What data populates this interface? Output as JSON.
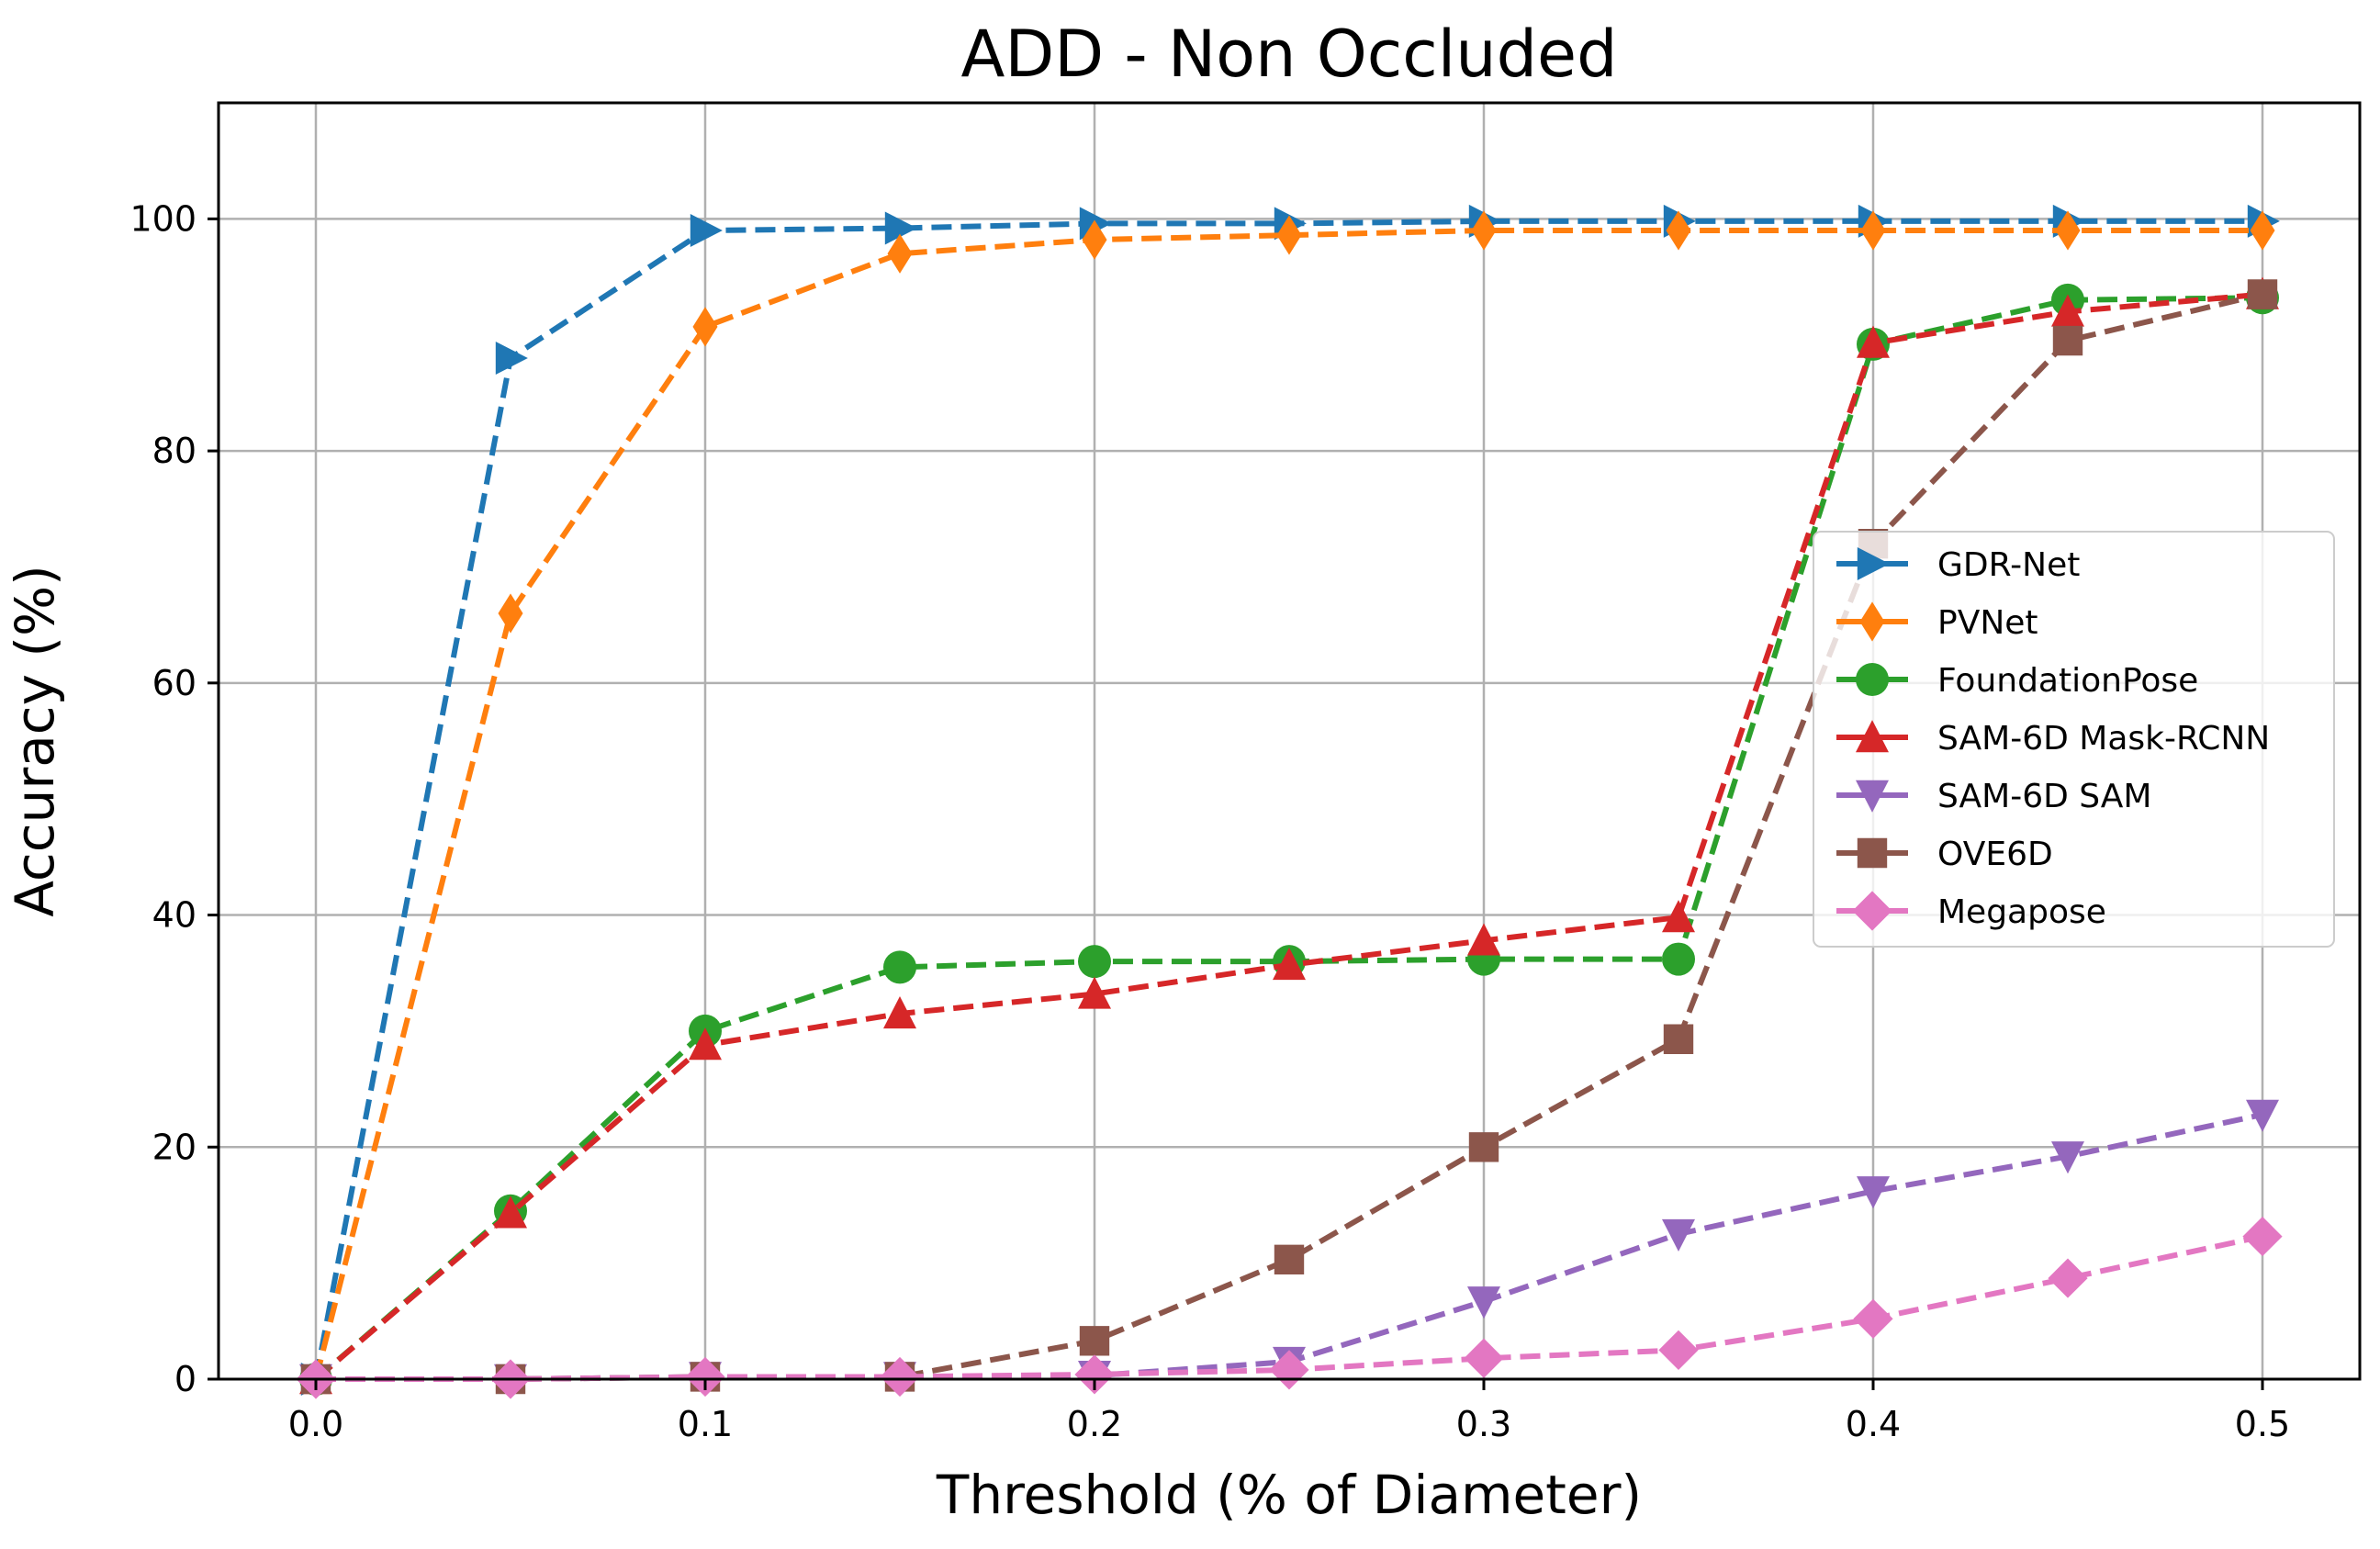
{
  "chart_data": {
    "type": "line",
    "title": "ADD - Non Occluded",
    "xlabel": "Threshold (% of Diameter)",
    "ylabel": "Accuracy (%)",
    "xlim": [
      -0.025,
      0.525
    ],
    "ylim": [
      0,
      110
    ],
    "xticks": [
      0.0,
      0.1,
      0.2,
      0.3,
      0.4,
      0.5
    ],
    "xtick_labels": [
      "0.0",
      "0.1",
      "0.2",
      "0.3",
      "0.4",
      "0.5"
    ],
    "yticks": [
      0,
      20,
      40,
      60,
      80,
      100
    ],
    "ytick_labels": [
      "0",
      "20",
      "40",
      "60",
      "80",
      "100"
    ],
    "grid": true,
    "legend_position": "center-right",
    "x": [
      0.0,
      0.05,
      0.1,
      0.15,
      0.2,
      0.25,
      0.3,
      0.35,
      0.4,
      0.45,
      0.5
    ],
    "series": [
      {
        "name": "GDR-Net",
        "color": "#1f77b4",
        "marker": "triangle-right",
        "values": [
          0,
          88,
          99,
          99.2,
          99.6,
          99.6,
          99.8,
          99.8,
          99.8,
          99.8,
          99.8
        ]
      },
      {
        "name": "PVNet",
        "color": "#ff7f0e",
        "marker": "thin-diamond",
        "values": [
          0,
          66,
          90.7,
          97,
          98.2,
          98.6,
          99,
          99,
          99,
          99,
          99
        ]
      },
      {
        "name": "FoundationPose",
        "color": "#2ca02c",
        "marker": "circle",
        "values": [
          0,
          14.5,
          30,
          35.5,
          36,
          36,
          36.2,
          36.2,
          89.2,
          93,
          93.2
        ]
      },
      {
        "name": "SAM-6D Mask-RCNN",
        "color": "#d62728",
        "marker": "triangle-up",
        "values": [
          0,
          14.3,
          28.8,
          31.5,
          33.2,
          35.7,
          37.8,
          39.8,
          89.3,
          92,
          93.5
        ]
      },
      {
        "name": "SAM-6D SAM",
        "color": "#9467bd",
        "marker": "triangle-down",
        "values": [
          0,
          0,
          0.2,
          0.2,
          0.3,
          1.5,
          6.7,
          12.5,
          16.2,
          19.2,
          22.8
        ]
      },
      {
        "name": "OVE6D",
        "color": "#8c564b",
        "marker": "square",
        "values": [
          0,
          0,
          0.2,
          0.2,
          3.3,
          10.3,
          20,
          29.3,
          72,
          89.5,
          93.5
        ]
      },
      {
        "name": "Megapose",
        "color": "#e377c2",
        "marker": "diamond",
        "values": [
          0,
          0,
          0.2,
          0.2,
          0.4,
          0.8,
          1.8,
          2.5,
          5.2,
          8.7,
          12.3
        ]
      }
    ]
  }
}
